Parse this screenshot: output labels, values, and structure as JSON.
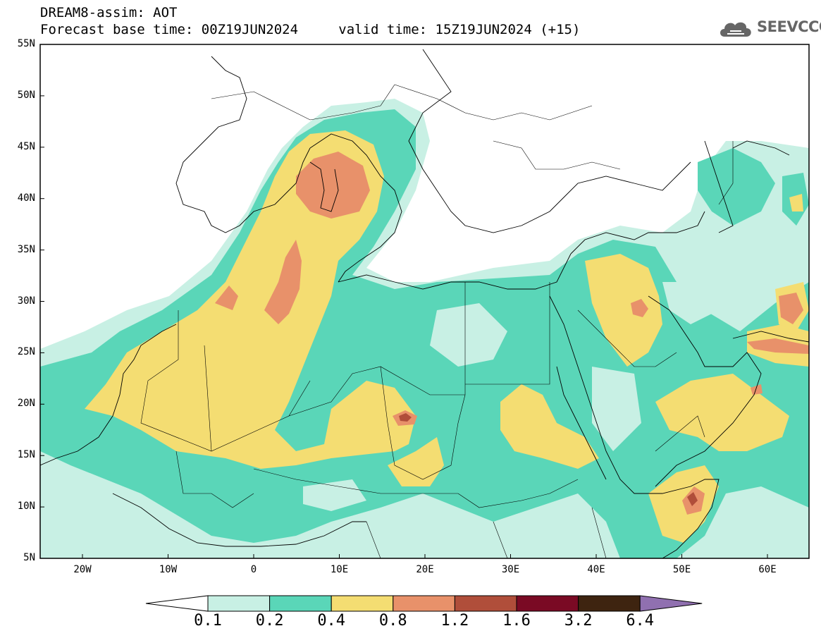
{
  "header": {
    "line1": "DREAM8-assim: AOT",
    "base_label": "Forecast base time: 00Z19JUN2024",
    "valid_label": "valid time: 15Z19JUN2024 (+15)"
  },
  "logo": {
    "text": "SEEVCCC",
    "icon": "cloud-icon"
  },
  "axes": {
    "lat_ticks": [
      "55N",
      "50N",
      "45N",
      "40N",
      "35N",
      "30N",
      "25N",
      "20N",
      "15N",
      "10N",
      "5N"
    ],
    "lon_ticks": [
      "20W",
      "10W",
      "0",
      "10E",
      "20E",
      "30E",
      "40E",
      "50E",
      "60E"
    ]
  },
  "colorbar": {
    "levels": [
      "0.1",
      "0.2",
      "0.4",
      "0.8",
      "1.2",
      "1.6",
      "3.2",
      "6.4"
    ],
    "colors": [
      "#ffffff",
      "#c8f0e4",
      "#5ad6b8",
      "#f4dd72",
      "#e8916a",
      "#b04e3a",
      "#7a0a24",
      "#3e2410",
      "#9070b0"
    ]
  }
}
